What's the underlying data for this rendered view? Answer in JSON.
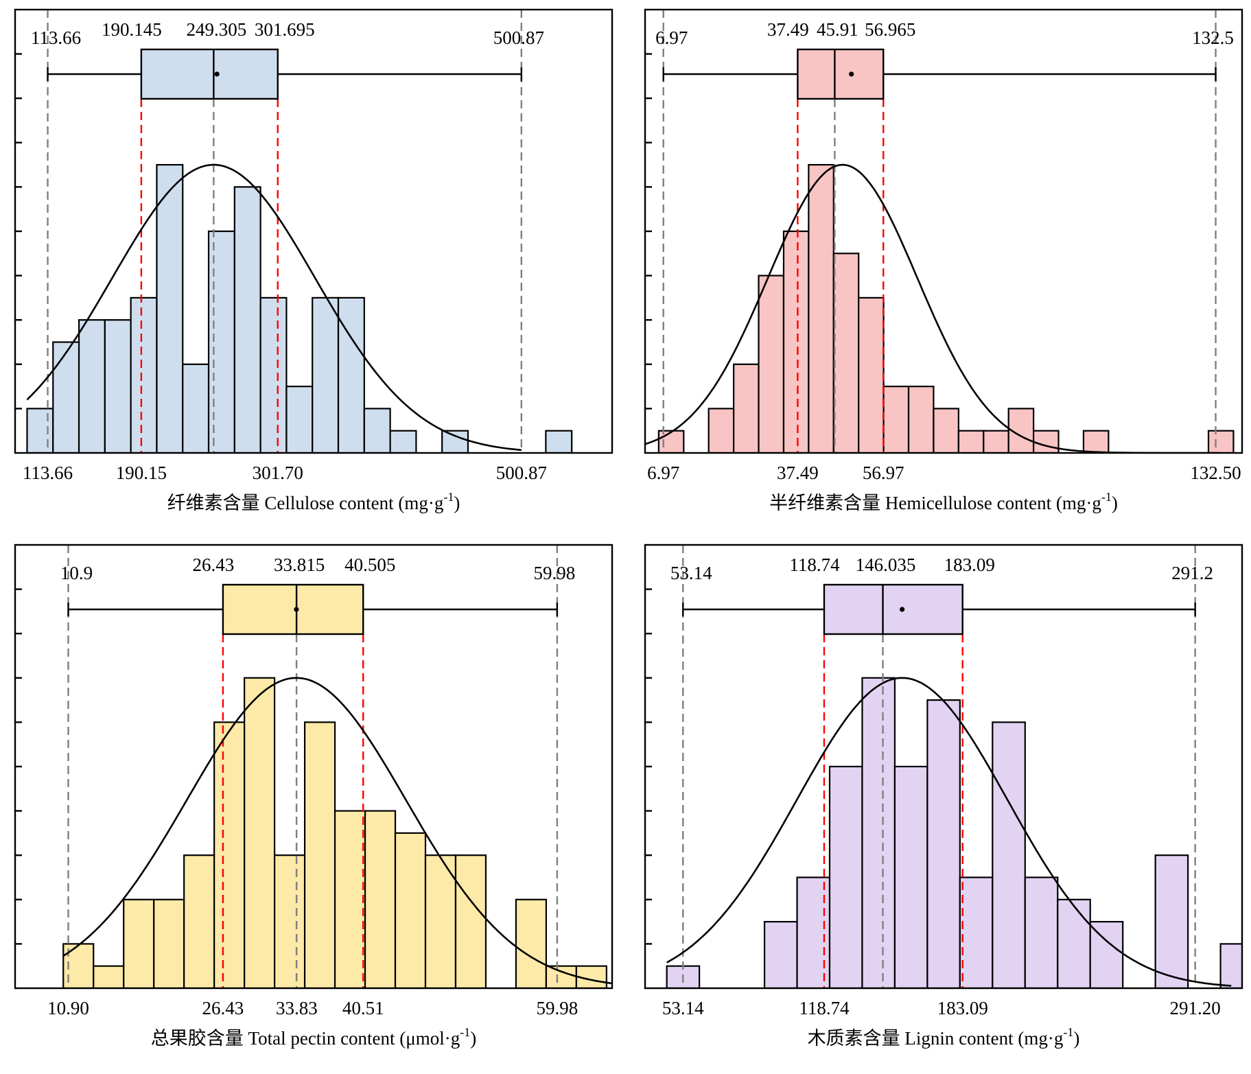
{
  "figure": {
    "panel_colors": [
      "#cfdeee",
      "#f8c4c4",
      "#fde9a8",
      "#e2d3f2"
    ],
    "line_color": "#000000",
    "guide_gray": "#7f7f7f",
    "guide_red": "#ff0000"
  },
  "chart_data": [
    {
      "type": "bar",
      "kind": "histogram-with-boxplot",
      "title": "",
      "xlabel": "纤维素含量 Cellulose content (mg·g",
      "xlabel_sup": "-1",
      "xlabel_close": ")",
      "xlim": [
        87,
        575
      ],
      "x_ticks": [
        "113.66",
        "190.15",
        "301.70",
        "500.87"
      ],
      "bin_width": 21.2,
      "bin_start": 96.8,
      "bin_counts": [
        2,
        5,
        6,
        6,
        7,
        13,
        4,
        10,
        12,
        7,
        3,
        7,
        7,
        2,
        1,
        0,
        1,
        0,
        0,
        0,
        1
      ],
      "count_max": 20,
      "normal_curve": {
        "mean": 249.3,
        "sd": 83,
        "peak": 13,
        "range": [
          96.8,
          500.9
        ]
      },
      "box": {
        "whisker_low": 113.66,
        "q1": 190.145,
        "median": 249.305,
        "q3": 301.695,
        "whisker_high": 500.87,
        "mean": 252,
        "labels": [
          "113.66",
          "190.145",
          "249.305",
          "301.695",
          "500.87"
        ]
      },
      "color": "#cfdeee"
    },
    {
      "type": "bar",
      "kind": "histogram-with-boxplot",
      "title": "",
      "xlabel": "半纤维素含量 Hemicellulose content (mg·g",
      "xlabel_sup": "-1",
      "xlabel_close": ")",
      "xlim": [
        2.8,
        138.5
      ],
      "x_ticks": [
        "6.97",
        "37.49",
        "56.97",
        "132.50"
      ],
      "bin_width": 5.68,
      "bin_start": 5.9,
      "bin_counts": [
        1,
        0,
        2,
        4,
        8,
        10,
        13,
        9,
        7,
        3,
        3,
        2,
        1,
        1,
        2,
        1,
        0,
        1,
        0,
        0,
        0,
        0,
        1
      ],
      "count_max": 20,
      "normal_curve": {
        "mean": 47.7,
        "sd": 17,
        "peak": 13,
        "range": [
          2.8,
          133
        ]
      },
      "box": {
        "whisker_low": 6.97,
        "q1": 37.49,
        "median": 45.91,
        "q3": 56.965,
        "whisker_high": 132.5,
        "mean": 49.7,
        "labels": [
          "6.97",
          "37.49",
          "45.91",
          "56.965",
          "132.5"
        ]
      },
      "color": "#f8c4c4"
    },
    {
      "type": "bar",
      "kind": "histogram-with-boxplot",
      "title": "",
      "xlabel": "总果胶含量 Total pectin content (μmol·g",
      "xlabel_sup": "-1",
      "xlabel_close": ")",
      "xlim": [
        5.56,
        65.5
      ],
      "x_ticks": [
        "10.90",
        "26.43",
        "33.83",
        "40.51",
        "59.98"
      ],
      "bin_width": 3.03,
      "bin_start": 10.4,
      "bin_counts": [
        2,
        1,
        4,
        4,
        6,
        12,
        14,
        6,
        12,
        8,
        8,
        7,
        6,
        6,
        0,
        4,
        1,
        1
      ],
      "count_max": 20,
      "normal_curve": {
        "mean": 33.8,
        "sd": 11,
        "peak": 14,
        "range": [
          10.4,
          65.5
        ]
      },
      "box": {
        "whisker_low": 10.9,
        "q1": 26.43,
        "median": 33.815,
        "q3": 40.505,
        "whisker_high": 59.98,
        "mean": 33.8,
        "labels": [
          "10.9",
          "26.43",
          "33.815",
          "40.505",
          "59.98"
        ]
      },
      "color": "#fde9a8"
    },
    {
      "type": "bar",
      "kind": "histogram-with-boxplot",
      "title": "",
      "xlabel": "木质素含量 Lignin content (mg·g",
      "xlabel_sup": "-1",
      "xlabel_close": ")",
      "xlim": [
        35.5,
        313
      ],
      "x_ticks": [
        "53.14",
        "118.74",
        "183.09",
        "291.20"
      ],
      "bin_width": 15.14,
      "bin_start": 45.6,
      "bin_counts": [
        1,
        0,
        0,
        3,
        5,
        10,
        14,
        10,
        13,
        5,
        12,
        5,
        4,
        3,
        0,
        6,
        0,
        2
      ],
      "count_max": 20,
      "normal_curve": {
        "mean": 155,
        "sd": 49,
        "peak": 14,
        "range": [
          45.6,
          308
        ]
      },
      "box": {
        "whisker_low": 53.14,
        "q1": 118.74,
        "median": 146.035,
        "q3": 183.09,
        "whisker_high": 291.2,
        "mean": 155,
        "labels": [
          "53.14",
          "118.74",
          "146.035",
          "183.09",
          "291.2"
        ]
      },
      "color": "#e2d3f2"
    }
  ]
}
